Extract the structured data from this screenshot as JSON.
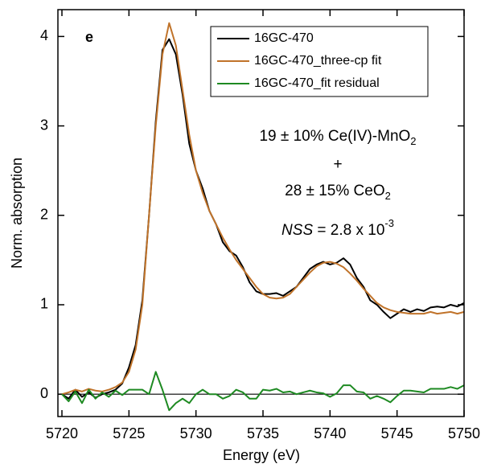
{
  "chart_data": {
    "type": "line",
    "xlabel": "Energy (eV)",
    "ylabel": "Norm. absorption",
    "x": [
      5720,
      5720.5,
      5721,
      5721.5,
      5722,
      5722.5,
      5723,
      5723.5,
      5724,
      5724.5,
      5725,
      5725.5,
      5726,
      5726.5,
      5727,
      5727.5,
      5728,
      5728.5,
      5729,
      5729.5,
      5730,
      5730.5,
      5731,
      5731.5,
      5732,
      5732.5,
      5733,
      5733.5,
      5734,
      5734.5,
      5735,
      5735.5,
      5736,
      5736.5,
      5737,
      5737.5,
      5738,
      5738.5,
      5739,
      5739.5,
      5740,
      5740.5,
      5741,
      5741.5,
      5742,
      5742.5,
      5743,
      5743.5,
      5744,
      5744.5,
      5745,
      5745.5,
      5746,
      5746.5,
      5747,
      5747.5,
      5748,
      5748.5,
      5749,
      5749.5,
      5750
    ],
    "series": [
      {
        "name": "16GC-470",
        "color": "#000000",
        "values": [
          0.0,
          -0.05,
          0.05,
          -0.03,
          0.02,
          -0.04,
          0.0,
          0.02,
          0.05,
          0.12,
          0.3,
          0.55,
          1.05,
          2.0,
          3.05,
          3.85,
          3.97,
          3.8,
          3.35,
          2.8,
          2.5,
          2.3,
          2.05,
          1.9,
          1.7,
          1.6,
          1.55,
          1.42,
          1.25,
          1.15,
          1.12,
          1.12,
          1.13,
          1.1,
          1.15,
          1.2,
          1.3,
          1.4,
          1.45,
          1.48,
          1.45,
          1.47,
          1.52,
          1.45,
          1.3,
          1.2,
          1.05,
          1.0,
          0.92,
          0.85,
          0.9,
          0.95,
          0.92,
          0.95,
          0.93,
          0.97,
          0.98,
          0.97,
          1.0,
          0.98,
          1.02
        ]
      },
      {
        "name": "16GC-470_three-cp fit",
        "color": "#c0732a",
        "values": [
          0.0,
          0.02,
          0.05,
          0.03,
          0.06,
          0.04,
          0.03,
          0.05,
          0.08,
          0.13,
          0.25,
          0.5,
          1.0,
          2.0,
          3.0,
          3.8,
          4.15,
          3.9,
          3.4,
          2.9,
          2.5,
          2.25,
          2.05,
          1.9,
          1.75,
          1.62,
          1.5,
          1.4,
          1.3,
          1.2,
          1.12,
          1.08,
          1.07,
          1.08,
          1.12,
          1.2,
          1.28,
          1.36,
          1.43,
          1.47,
          1.48,
          1.46,
          1.42,
          1.35,
          1.27,
          1.18,
          1.1,
          1.02,
          0.97,
          0.94,
          0.92,
          0.91,
          0.9,
          0.9,
          0.9,
          0.92,
          0.9,
          0.91,
          0.92,
          0.9,
          0.92
        ]
      },
      {
        "name": "16GC-470_fit residual",
        "color": "#1e8a22",
        "values": [
          0.0,
          -0.08,
          0.03,
          -0.1,
          0.05,
          -0.05,
          0.02,
          -0.03,
          0.04,
          -0.01,
          0.05,
          0.05,
          0.05,
          0.0,
          0.25,
          0.05,
          -0.18,
          -0.1,
          -0.05,
          -0.1,
          0.0,
          0.05,
          0.0,
          0.0,
          -0.05,
          -0.02,
          0.05,
          0.02,
          -0.05,
          -0.05,
          0.05,
          0.04,
          0.06,
          0.02,
          0.03,
          0.0,
          0.02,
          0.04,
          0.02,
          0.01,
          -0.03,
          0.01,
          0.1,
          0.1,
          0.03,
          0.02,
          -0.05,
          -0.02,
          -0.05,
          -0.09,
          -0.02,
          0.04,
          0.04,
          0.03,
          0.02,
          0.06,
          0.06,
          0.06,
          0.08,
          0.06,
          0.1
        ]
      }
    ],
    "xlim": [
      5719.7,
      5750
    ],
    "xticks": [
      5720,
      5725,
      5730,
      5735,
      5740,
      5745,
      5750
    ],
    "ylim": [
      -0.25,
      4.3
    ],
    "yticks": [
      0,
      1,
      2,
      3,
      4
    ],
    "zero_line": true,
    "legend": "upper right",
    "panel_label": "e",
    "annotations": [
      {
        "text": "19 ± 10% Ce(IV)-MnO",
        "sub": "2"
      },
      {
        "text": "+"
      },
      {
        "text": "28 ± 15% CeO",
        "sub": "2"
      },
      {
        "italic": "NSS",
        "text": " = 2.8 x 10",
        "sup": "-3"
      }
    ]
  }
}
